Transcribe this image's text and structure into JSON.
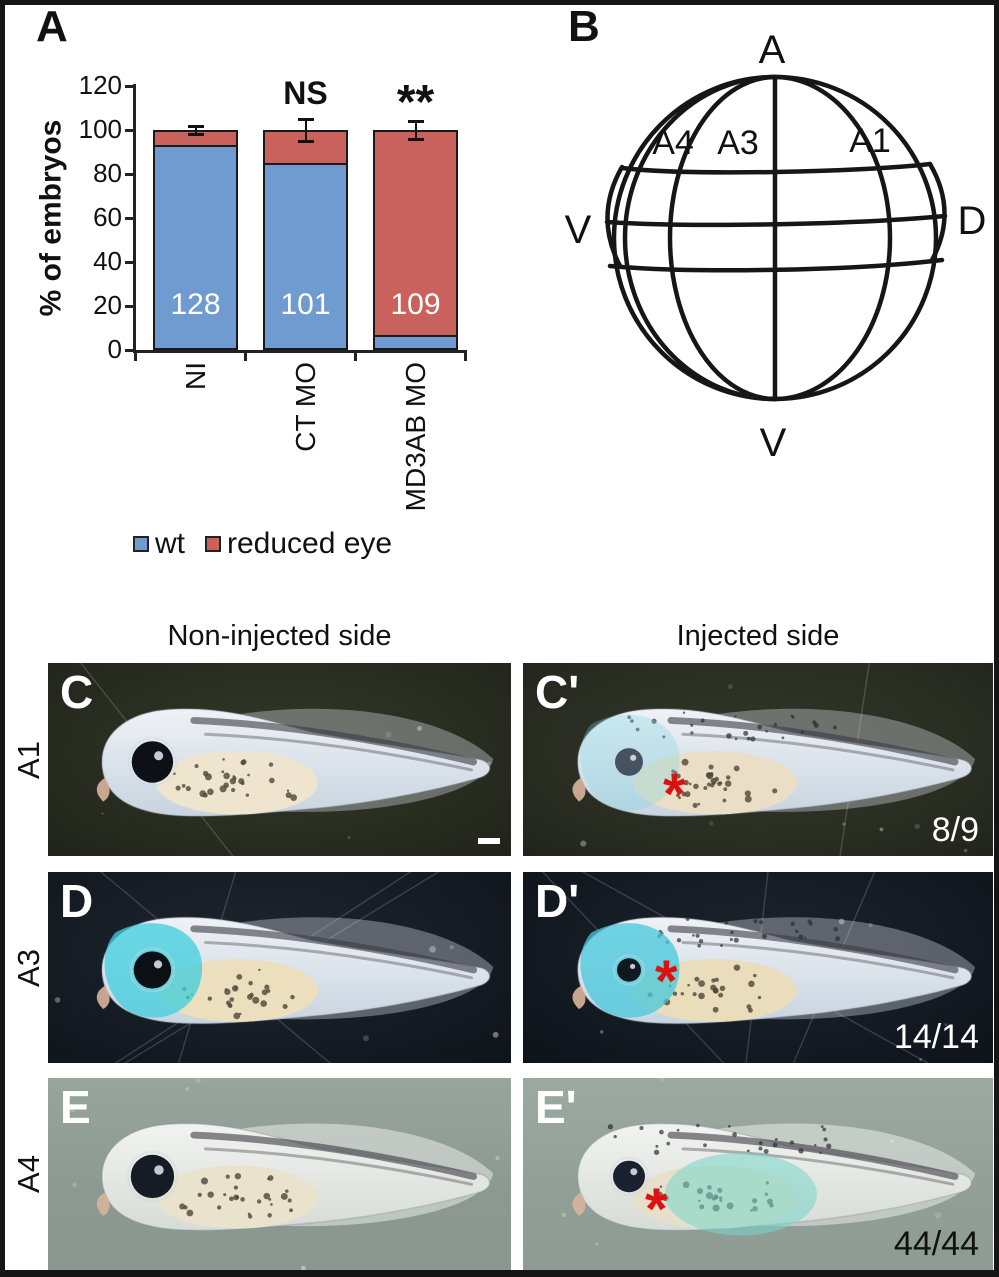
{
  "figure": {
    "panel_a_label": "A",
    "panel_b_label": "B"
  },
  "chart_data": {
    "type": "stacked_bar",
    "title": "",
    "ylabel": "% of embryos",
    "ylim": [
      0,
      120
    ],
    "yticks": [
      0,
      20,
      40,
      60,
      80,
      100,
      120
    ],
    "grid": false,
    "legend_position": "below",
    "categories": [
      "NI",
      "CT MO",
      "MD3AB MO"
    ],
    "series": [
      {
        "name": "wt",
        "color": "#6f9bd0",
        "values": [
          93,
          85,
          7
        ]
      },
      {
        "name": "reduced eye",
        "color": "#c9615c",
        "values": [
          7,
          15,
          93
        ]
      }
    ],
    "bar_counts": [
      "128",
      "101",
      "109"
    ],
    "error_bars": [
      2,
      5,
      4
    ],
    "annotations": [
      "",
      "NS",
      "**"
    ]
  },
  "embryo_diagram": {
    "pole_top": "A",
    "pole_bottom": "V",
    "side_left": "V",
    "side_right": "D",
    "blastomeres": [
      "A4",
      "A3",
      "A1"
    ]
  },
  "photos": {
    "left_header": "Non-injected side",
    "right_header": "Injected side",
    "asterisk_char": "*",
    "rows": [
      {
        "side_label": "A1",
        "left": {
          "letter": "C"
        },
        "right": {
          "letter": "C'",
          "count": "8/9"
        }
      },
      {
        "side_label": "A3",
        "left": {
          "letter": "D"
        },
        "right": {
          "letter": "D'",
          "count": "14/14"
        }
      },
      {
        "side_label": "A4",
        "left": {
          "letter": "E"
        },
        "right": {
          "letter": "E'",
          "count": "44/44"
        }
      }
    ]
  }
}
